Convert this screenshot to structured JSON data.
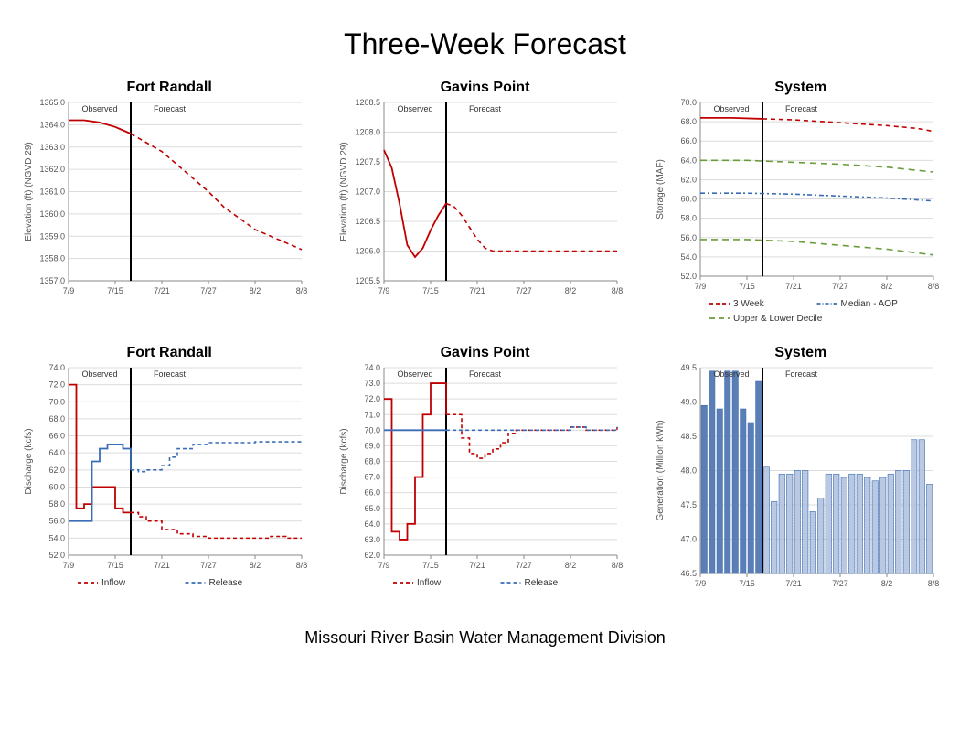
{
  "title": "Three-Week Forecast",
  "footer": "Missouri River Basin Water Management Division",
  "x_axis": {
    "labels": [
      "7/9",
      "7/15",
      "7/21",
      "7/27",
      "8/2",
      "8/8"
    ],
    "positions": [
      0,
      6,
      12,
      18,
      24,
      30
    ],
    "domain": [
      0,
      30
    ],
    "observed_at": 8
  },
  "colors": {
    "red": "#c00000",
    "blue": "#3a6db5",
    "green": "#6a9c3a",
    "black": "#000000",
    "grid": "#dcdcdc",
    "axis": "#888888",
    "bar_fill": "#5b7fb5",
    "bar_outline": "#3a6db5"
  },
  "panels": {
    "fr_elev": {
      "title": "Fort Randall",
      "ylabel": "Elevation (ft) (NGVD 29)",
      "ylim": [
        1357.0,
        1365.0
      ],
      "ytick_step": 1.0,
      "obs_forecast_labels": [
        "Observed",
        "Forecast"
      ],
      "series": [
        {
          "name": "elev",
          "color": "#c00000",
          "solid_until": 8,
          "dash": "5,4",
          "points": [
            [
              0,
              1364.2
            ],
            [
              2,
              1364.2
            ],
            [
              4,
              1364.1
            ],
            [
              6,
              1363.9
            ],
            [
              8,
              1363.6
            ],
            [
              10,
              1363.2
            ],
            [
              12,
              1362.8
            ],
            [
              14,
              1362.2
            ],
            [
              16,
              1361.6
            ],
            [
              18,
              1361.0
            ],
            [
              20,
              1360.3
            ],
            [
              22,
              1359.8
            ],
            [
              24,
              1359.3
            ],
            [
              26,
              1359.0
            ],
            [
              28,
              1358.7
            ],
            [
              30,
              1358.4
            ]
          ]
        }
      ]
    },
    "gp_elev": {
      "title": "Gavins Point",
      "ylabel": "Elevation (ft) (NGVD 29)",
      "ylim": [
        1205.5,
        1208.5
      ],
      "ytick_step": 0.5,
      "obs_forecast_labels": [
        "Observed",
        "Forecast"
      ],
      "series": [
        {
          "name": "elev",
          "color": "#c00000",
          "solid_until": 8,
          "dash": "5,4",
          "points": [
            [
              0,
              1207.7
            ],
            [
              1,
              1207.4
            ],
            [
              2,
              1206.8
            ],
            [
              3,
              1206.1
            ],
            [
              4,
              1205.9
            ],
            [
              5,
              1206.05
            ],
            [
              6,
              1206.35
            ],
            [
              7,
              1206.6
            ],
            [
              8,
              1206.8
            ],
            [
              9,
              1206.75
            ],
            [
              10,
              1206.6
            ],
            [
              11,
              1206.4
            ],
            [
              12,
              1206.2
            ],
            [
              13,
              1206.05
            ],
            [
              14,
              1206.0
            ],
            [
              16,
              1206.0
            ],
            [
              18,
              1206.0
            ],
            [
              20,
              1206.0
            ],
            [
              22,
              1206.0
            ],
            [
              24,
              1206.0
            ],
            [
              26,
              1206.0
            ],
            [
              28,
              1206.0
            ],
            [
              30,
              1206.0
            ]
          ]
        }
      ]
    },
    "sys_storage": {
      "title": "System",
      "ylabel": "Storage (MAF)",
      "ylim": [
        52.0,
        70.0
      ],
      "ytick_step": 2.0,
      "obs_forecast_labels": [
        "Observed",
        "Forecast"
      ],
      "series": [
        {
          "name": "3week",
          "color": "#c00000",
          "solid_until": 8,
          "dash": "5,4",
          "points": [
            [
              0,
              68.4
            ],
            [
              4,
              68.4
            ],
            [
              8,
              68.3
            ],
            [
              12,
              68.2
            ],
            [
              16,
              68.0
            ],
            [
              20,
              67.8
            ],
            [
              24,
              67.6
            ],
            [
              28,
              67.3
            ],
            [
              30,
              67.0
            ]
          ]
        },
        {
          "name": "upper",
          "color": "#6a9c3a",
          "solid_until": -1,
          "dash": "7,5",
          "points": [
            [
              0,
              64.0
            ],
            [
              6,
              64.0
            ],
            [
              12,
              63.8
            ],
            [
              18,
              63.6
            ],
            [
              24,
              63.3
            ],
            [
              30,
              62.8
            ]
          ]
        },
        {
          "name": "median",
          "color": "#3a6db5",
          "solid_until": -1,
          "dash": "5,3,2,3",
          "points": [
            [
              0,
              60.6
            ],
            [
              6,
              60.6
            ],
            [
              12,
              60.5
            ],
            [
              18,
              60.3
            ],
            [
              24,
              60.1
            ],
            [
              30,
              59.8
            ]
          ]
        },
        {
          "name": "lower",
          "color": "#6a9c3a",
          "solid_until": -1,
          "dash": "7,5",
          "points": [
            [
              0,
              55.8
            ],
            [
              6,
              55.8
            ],
            [
              12,
              55.6
            ],
            [
              18,
              55.2
            ],
            [
              24,
              54.8
            ],
            [
              30,
              54.2
            ]
          ]
        }
      ],
      "legend": [
        {
          "label": "3 Week",
          "color": "#c00000",
          "dash": "4,3"
        },
        {
          "label": "Median - AOP",
          "color": "#3a6db5",
          "dash": "4,2,1,2"
        },
        {
          "label": "Upper & Lower Decile",
          "color": "#6a9c3a",
          "dash": "6,4"
        }
      ]
    },
    "fr_disch": {
      "title": "Fort Randall",
      "ylabel": "Discharge (kcfs)",
      "ylim": [
        52.0,
        74.0
      ],
      "ytick_step": 2.0,
      "obs_forecast_labels": [
        "Observed",
        "Forecast"
      ],
      "series": [
        {
          "name": "inflow",
          "color": "#c00000",
          "solid_until": 8,
          "dash": "4,3",
          "step": true,
          "points": [
            [
              0,
              72.0
            ],
            [
              1,
              57.5
            ],
            [
              2,
              58.0
            ],
            [
              3,
              60.0
            ],
            [
              4,
              60.0
            ],
            [
              5,
              60.0
            ],
            [
              6,
              57.5
            ],
            [
              7,
              57.0
            ],
            [
              8,
              57.0
            ],
            [
              9,
              56.5
            ],
            [
              10,
              56.0
            ],
            [
              12,
              55.0
            ],
            [
              14,
              54.5
            ],
            [
              16,
              54.2
            ],
            [
              18,
              54.0
            ],
            [
              20,
              54.0
            ],
            [
              22,
              54.0
            ],
            [
              24,
              54.0
            ],
            [
              26,
              54.2
            ],
            [
              28,
              54.0
            ],
            [
              30,
              54.0
            ]
          ]
        },
        {
          "name": "release",
          "color": "#3a6db5",
          "solid_until": 8,
          "dash": "4,3",
          "step": true,
          "points": [
            [
              0,
              56.0
            ],
            [
              1,
              56.0
            ],
            [
              2,
              56.0
            ],
            [
              3,
              63.0
            ],
            [
              4,
              64.5
            ],
            [
              5,
              65.0
            ],
            [
              6,
              65.0
            ],
            [
              7,
              64.5
            ],
            [
              8,
              62.0
            ],
            [
              9,
              61.8
            ],
            [
              10,
              62.0
            ],
            [
              11,
              62.0
            ],
            [
              12,
              62.5
            ],
            [
              13,
              63.5
            ],
            [
              14,
              64.5
            ],
            [
              16,
              65.0
            ],
            [
              18,
              65.2
            ],
            [
              20,
              65.2
            ],
            [
              22,
              65.2
            ],
            [
              24,
              65.3
            ],
            [
              26,
              65.3
            ],
            [
              28,
              65.3
            ],
            [
              30,
              65.3
            ]
          ]
        }
      ],
      "legend": [
        {
          "label": "Inflow",
          "color": "#c00000",
          "dash": "4,3"
        },
        {
          "label": "Release",
          "color": "#3a6db5",
          "dash": "4,3"
        }
      ]
    },
    "gp_disch": {
      "title": "Gavins Point",
      "ylabel": "Discharge (kcfs)",
      "ylim": [
        62.0,
        74.0
      ],
      "ytick_step": 1.0,
      "obs_forecast_labels": [
        "Observed",
        "Forecast"
      ],
      "series": [
        {
          "name": "inflow",
          "color": "#c00000",
          "solid_until": 8,
          "dash": "4,3",
          "step": true,
          "points": [
            [
              0,
              72.0
            ],
            [
              1,
              63.5
            ],
            [
              2,
              63.0
            ],
            [
              3,
              64.0
            ],
            [
              4,
              67.0
            ],
            [
              5,
              71.0
            ],
            [
              6,
              73.0
            ],
            [
              7,
              73.0
            ],
            [
              8,
              71.0
            ],
            [
              9,
              71.0
            ],
            [
              10,
              69.5
            ],
            [
              11,
              68.5
            ],
            [
              12,
              68.2
            ],
            [
              13,
              68.5
            ],
            [
              14,
              68.8
            ],
            [
              15,
              69.2
            ],
            [
              16,
              69.8
            ],
            [
              17,
              70.0
            ],
            [
              18,
              70.0
            ],
            [
              20,
              70.0
            ],
            [
              22,
              70.0
            ],
            [
              24,
              70.2
            ],
            [
              26,
              70.0
            ],
            [
              28,
              70.0
            ],
            [
              30,
              70.2
            ]
          ]
        },
        {
          "name": "release",
          "color": "#3a6db5",
          "solid_until": 8,
          "dash": "4,3",
          "step": true,
          "points": [
            [
              0,
              70.0
            ],
            [
              2,
              70.0
            ],
            [
              4,
              70.0
            ],
            [
              6,
              70.0
            ],
            [
              8,
              70.0
            ],
            [
              10,
              70.0
            ],
            [
              12,
              70.0
            ],
            [
              14,
              70.0
            ],
            [
              16,
              70.0
            ],
            [
              18,
              70.0
            ],
            [
              20,
              70.0
            ],
            [
              22,
              70.0
            ],
            [
              24,
              70.2
            ],
            [
              26,
              70.0
            ],
            [
              28,
              70.0
            ],
            [
              30,
              70.2
            ]
          ]
        }
      ],
      "legend": [
        {
          "label": "Inflow",
          "color": "#c00000",
          "dash": "4,3"
        },
        {
          "label": "Release",
          "color": "#3a6db5",
          "dash": "4,3"
        }
      ]
    },
    "sys_gen": {
      "title": "System",
      "ylabel": "Generation (Million kWh)",
      "ylim": [
        46.5,
        49.5
      ],
      "ytick_step": 0.5,
      "obs_forecast_labels": [
        "Observed",
        "Forecast"
      ],
      "bars": {
        "fill": "#5b7fb5",
        "outline": "#3a6db5",
        "solid_until": 8,
        "values": [
          48.95,
          49.45,
          48.9,
          49.45,
          49.45,
          48.9,
          48.7,
          49.3,
          48.05,
          47.55,
          47.95,
          47.95,
          48.0,
          48.0,
          47.4,
          47.6,
          47.95,
          47.95,
          47.9,
          47.95,
          47.95,
          47.9,
          47.85,
          47.9,
          47.95,
          48.0,
          48.0,
          48.45,
          48.45,
          47.8
        ]
      }
    }
  }
}
